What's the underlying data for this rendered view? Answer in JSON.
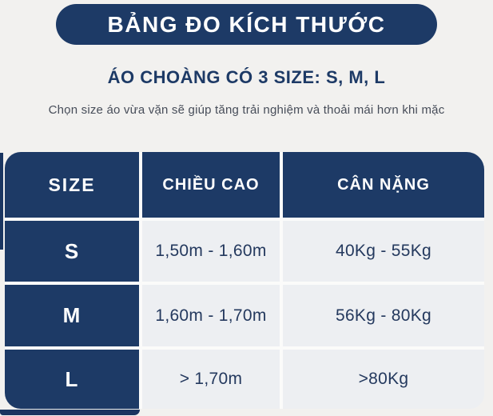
{
  "colors": {
    "navy": "#1d3a66",
    "page_background": "#f2f1ef",
    "data_cell_background": "#edeff2",
    "data_text": "#24395e",
    "note_text": "#474d59",
    "header_text": "#ffffff"
  },
  "banner": {
    "title": "BẢNG ĐO KÍCH THƯỚC"
  },
  "intro": {
    "subtitle": "ÁO CHOÀNG CÓ 3 SIZE: S, M, L",
    "note": "Chọn size áo vừa vặn sẽ giúp tăng trải nghiệm và thoải mái hơn khi mặc"
  },
  "chart_data": {
    "type": "table",
    "title": "BẢNG ĐO KÍCH THƯỚC",
    "subtitle": "ÁO CHOÀNG CÓ 3 SIZE: S, M, L",
    "note": "Chọn size áo vừa vặn sẽ giúp tăng trải nghiệm và thoải mái hơn khi mặc",
    "columns": [
      "SIZE",
      "CHIỀU CAO",
      "CÂN NẶNG"
    ],
    "rows": [
      [
        "S",
        "1,50m - 1,60m",
        "40Kg - 55Kg"
      ],
      [
        "M",
        "1,60m - 1,70m",
        "56Kg - 80Kg"
      ],
      [
        "L",
        "> 1,70m",
        ">80Kg"
      ]
    ]
  }
}
